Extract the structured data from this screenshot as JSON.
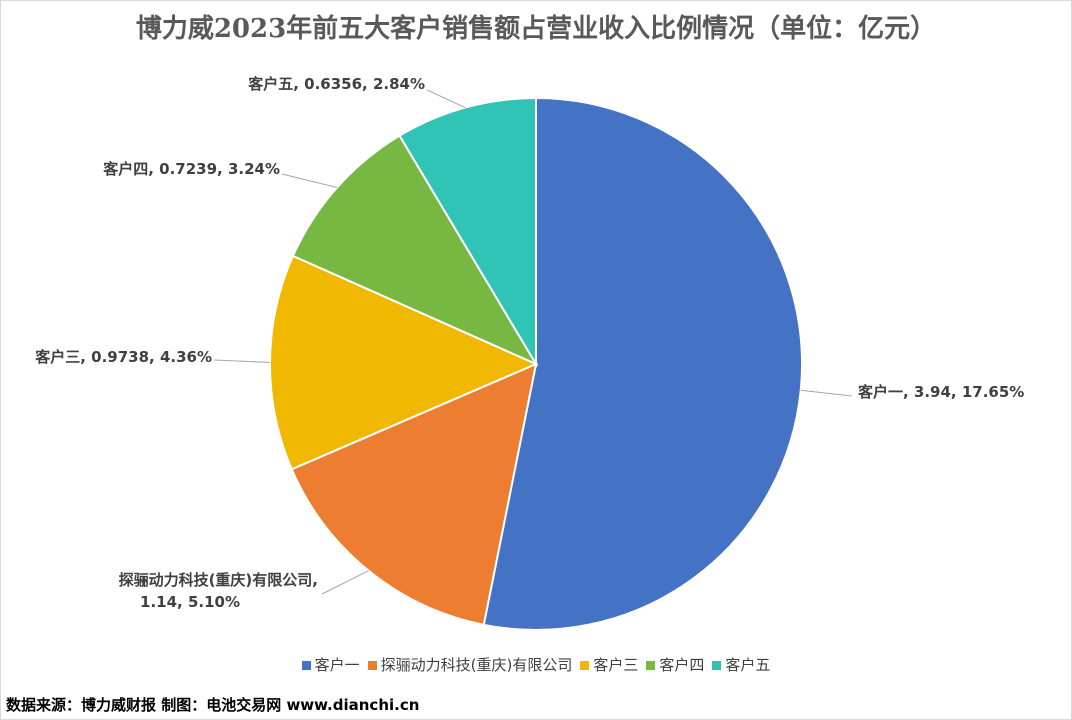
{
  "chart_data": {
    "type": "pie",
    "title": "博力威2023年前五大客户销售额占营业收入比例情况（单位：亿元）",
    "categories": [
      "客户一",
      "探骊动力科技(重庆)有限公司",
      "客户三",
      "客户四",
      "客户五"
    ],
    "values": [
      3.94,
      1.14,
      0.9738,
      0.7239,
      0.6356
    ],
    "percent_labels": [
      "17.65%",
      "5.10%",
      "4.36%",
      "3.24%",
      "2.84%"
    ],
    "value_labels": [
      "3.94",
      "1.14",
      "0.9738",
      "0.7239",
      "0.6356"
    ],
    "colors": [
      "#4472C4",
      "#ED7D31",
      "#F0B800",
      "#76B841",
      "#2FC4B6"
    ],
    "legend_position": "bottom"
  },
  "source": "数据来源：博力威财报  制图：电池交易网 www.dianchi.cn"
}
